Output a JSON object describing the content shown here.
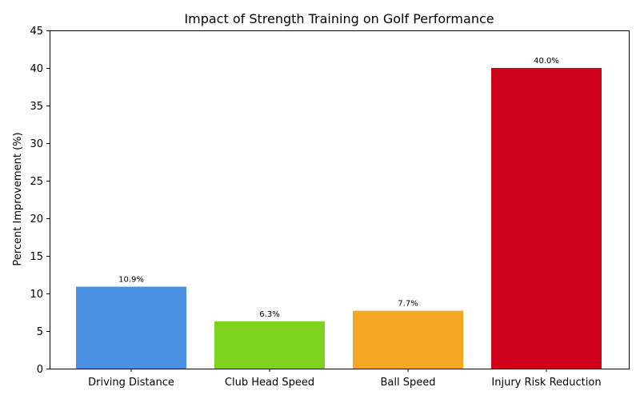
{
  "chart_data": {
    "type": "bar",
    "title": "Impact of Strength Training on Golf Performance",
    "xlabel": "",
    "ylabel": "Percent Improvement (%)",
    "categories": [
      "Driving Distance",
      "Club Head Speed",
      "Ball Speed",
      "Injury Risk Reduction"
    ],
    "values": [
      10.9,
      6.3,
      7.7,
      40.0
    ],
    "data_labels": [
      "10.9%",
      "6.3%",
      "7.7%",
      "40.0%"
    ],
    "colors": [
      "#4A90E2",
      "#7ED321",
      "#F5A623",
      "#D0021B"
    ],
    "ylim": [
      0,
      45
    ],
    "yticks": [
      0,
      5,
      10,
      15,
      20,
      25,
      30,
      35,
      40,
      45
    ],
    "grid": false,
    "legend": "none"
  }
}
